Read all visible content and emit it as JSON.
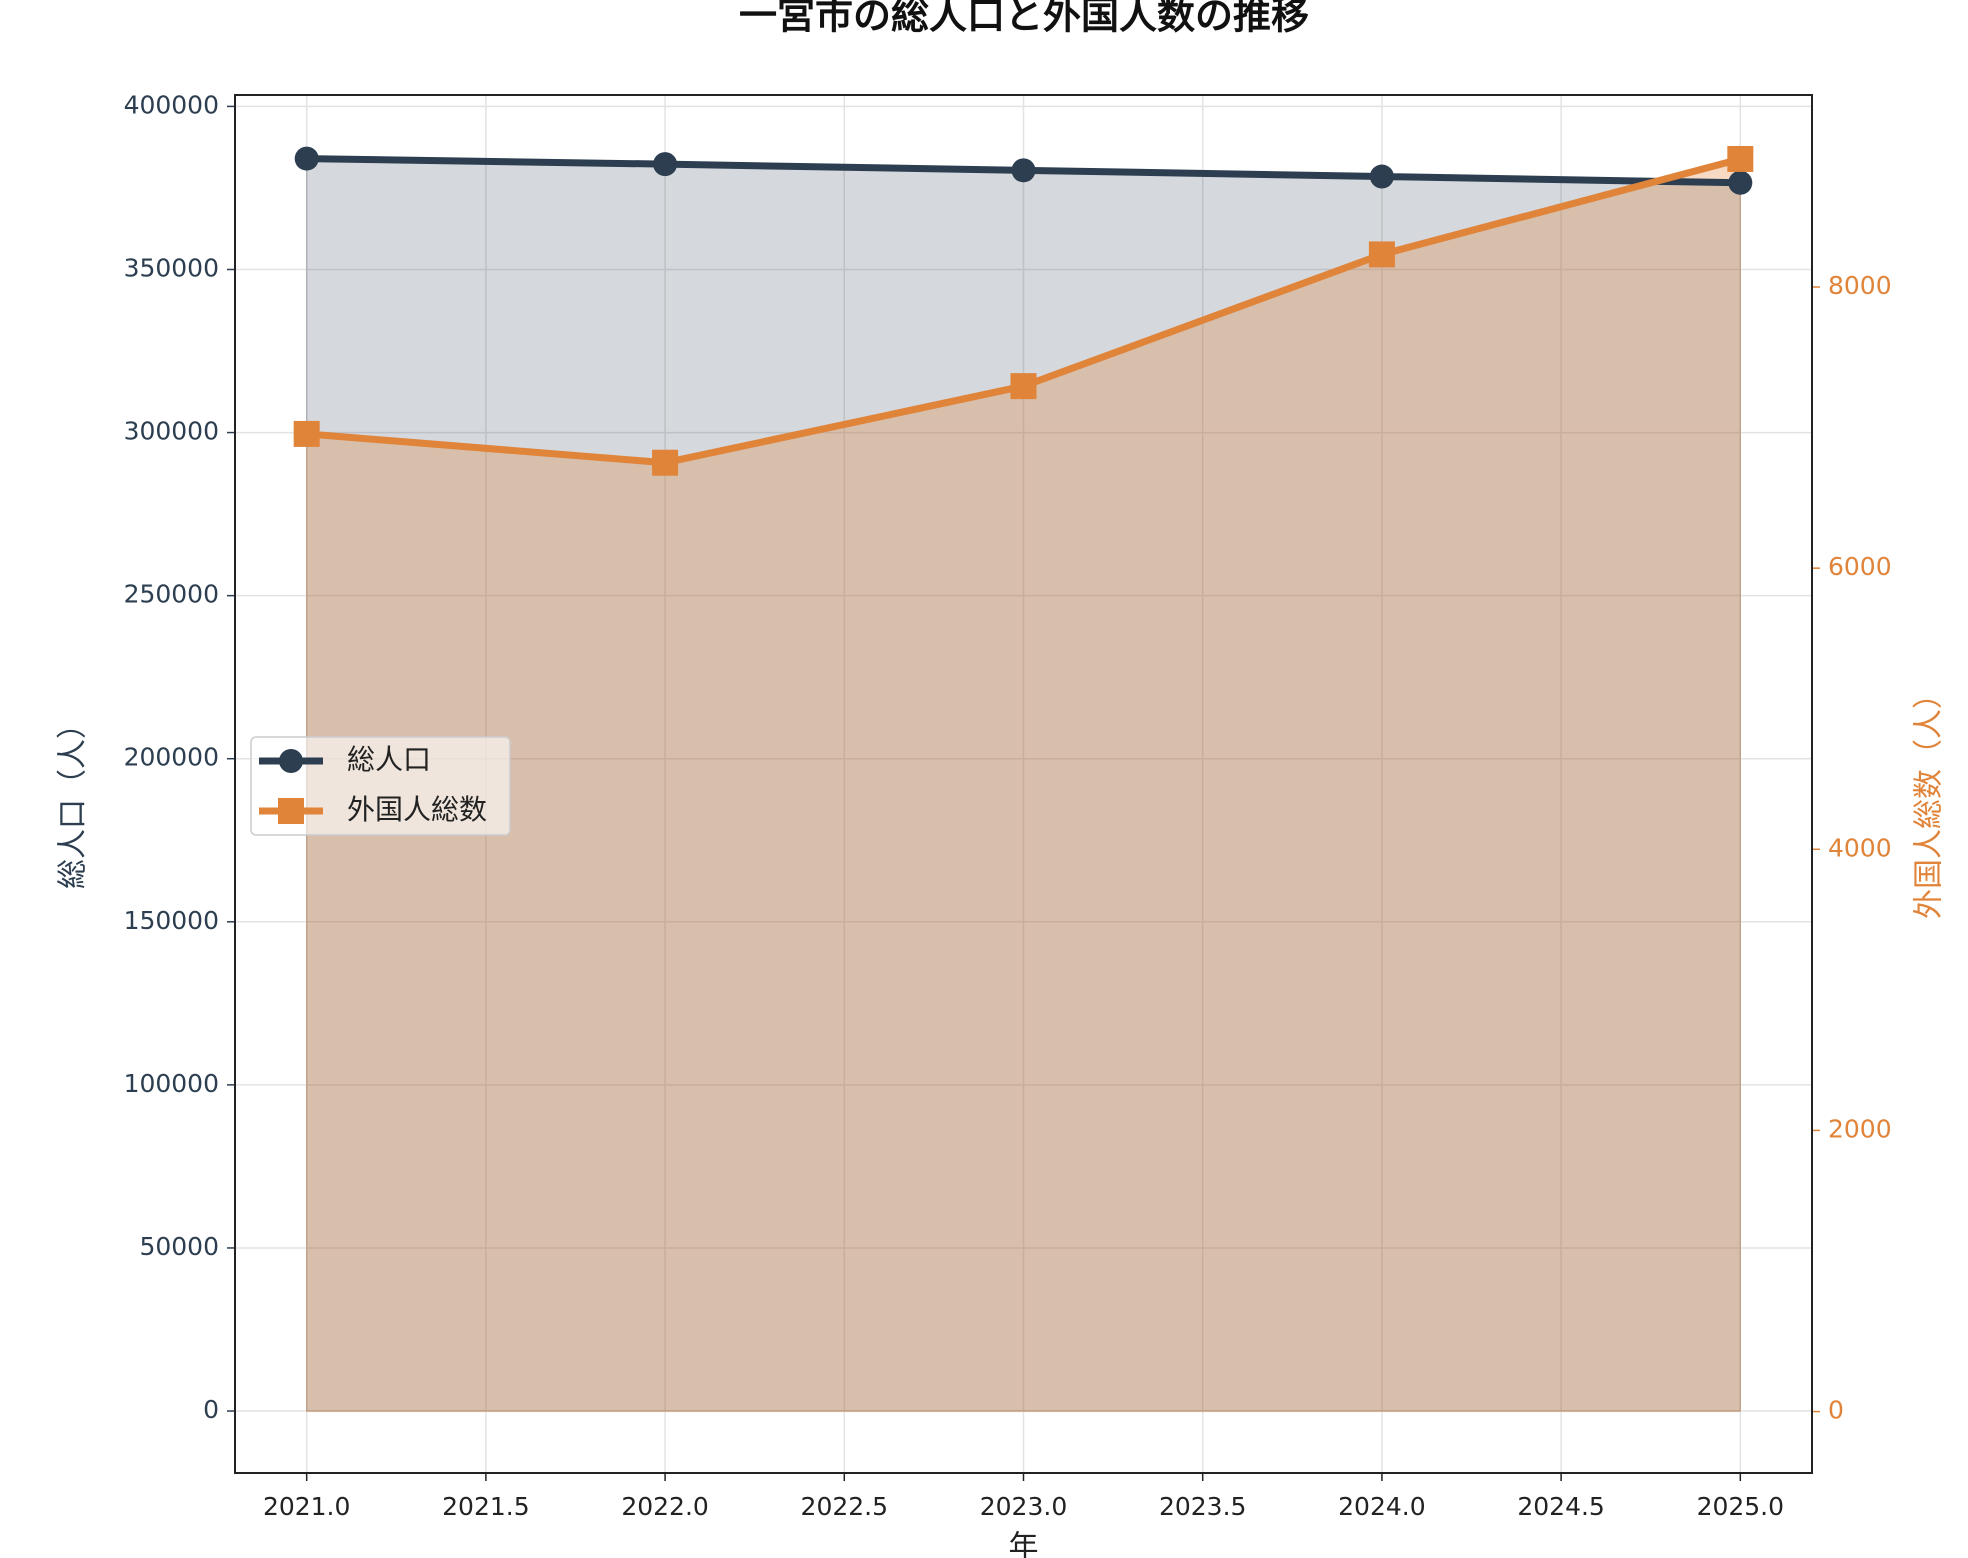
{
  "chart_data": {
    "type": "line",
    "title": "一宮市の総人口と外国人数の推移",
    "xlabel": "年",
    "ylabel": "総人口（人）",
    "y2label": "外国人総数（人）",
    "x": [
      2021,
      2022,
      2023,
      2024,
      2025
    ],
    "series": [
      {
        "name": "総人口",
        "color": "#2c3e50",
        "marker": "circle",
        "values": [
          384000,
          382300,
          380400,
          378500,
          376600
        ]
      },
      {
        "name": "外国人総数",
        "color": "#e0843a",
        "marker": "square",
        "axis": "y2",
        "values": [
          6955,
          6750,
          7295,
          8232,
          8911
        ]
      }
    ],
    "xlim": [
      2020.8,
      2025.2
    ],
    "xticks": [
      {
        "value": 2021,
        "label": "2021.0"
      },
      {
        "value": 2021.5,
        "label": "2021.5"
      },
      {
        "value": 2022,
        "label": "2022.0"
      },
      {
        "value": 2022.5,
        "label": "2022.5"
      },
      {
        "value": 2023,
        "label": "2023.0"
      },
      {
        "value": 2023.5,
        "label": "2023.5"
      },
      {
        "value": 2024,
        "label": "2024.0"
      },
      {
        "value": 2024.5,
        "label": "2024.5"
      },
      {
        "value": 2025,
        "label": "2025.0"
      }
    ],
    "ylim": [
      -19000,
      403500
    ],
    "yticks": [
      0,
      50000,
      100000,
      150000,
      200000,
      250000,
      300000,
      350000,
      400000
    ],
    "y2lim": [
      -437,
      9366
    ],
    "y2ticks": [
      0,
      2000,
      4000,
      6000,
      8000
    ],
    "grid": true,
    "fill": true,
    "legend": "center left"
  }
}
